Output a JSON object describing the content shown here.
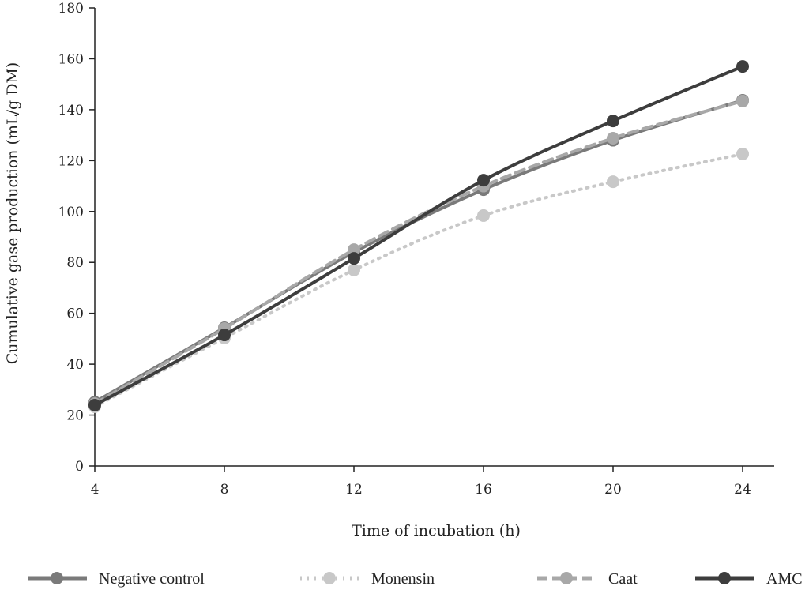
{
  "chart_data": {
    "type": "line",
    "title": "",
    "xlabel": "Time of incubation (h)",
    "ylabel": "Cumulative gase production (mL/g DM)",
    "x": [
      4,
      8,
      12,
      16,
      20,
      24
    ],
    "xlim": [
      4,
      25
    ],
    "ylim": [
      0,
      180
    ],
    "xticks": [
      "4",
      "8",
      "12",
      "16",
      "20",
      "24"
    ],
    "yticks": [
      "0",
      "20",
      "40",
      "60",
      "80",
      "100",
      "120",
      "140",
      "160",
      "180"
    ],
    "grid": false,
    "legend_position": "bottom",
    "series": [
      {
        "name": "Negative control",
        "values": [
          25.1,
          54.3,
          84.0,
          108.6,
          128.0,
          143.7
        ],
        "color": "#7a7a7a",
        "style": "solid"
      },
      {
        "name": "Monensin",
        "values": [
          23.3,
          50.3,
          77.0,
          98.4,
          111.7,
          122.6
        ],
        "color": "#c8c8c8",
        "style": "dotted"
      },
      {
        "name": "Caat",
        "values": [
          24.5,
          54.0,
          85.0,
          110.0,
          128.8,
          143.4
        ],
        "color": "#a8a8a8",
        "style": "dashed"
      },
      {
        "name": "AMC",
        "values": [
          23.9,
          51.5,
          81.6,
          112.3,
          135.6,
          157.0
        ],
        "color": "#3d3d3d",
        "style": "solid"
      }
    ]
  }
}
